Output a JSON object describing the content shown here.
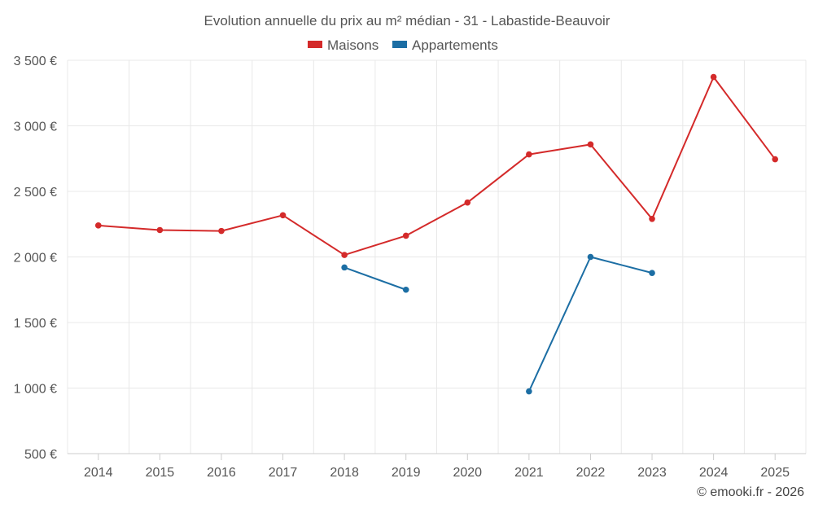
{
  "chart_data": {
    "type": "line",
    "title": "Evolution annuelle du prix au m² médian - 31 - Labastide-Beauvoir",
    "categories": [
      "2014",
      "2015",
      "2016",
      "2017",
      "2018",
      "2019",
      "2020",
      "2021",
      "2022",
      "2023",
      "2024",
      "2025"
    ],
    "y_tick_labels": [
      "500 €",
      "1 000 €",
      "1 500 €",
      "2 000 €",
      "2 500 €",
      "3 000 €",
      "3 500 €"
    ],
    "y_tick_values": [
      500,
      1000,
      1500,
      2000,
      2500,
      3000,
      3500
    ],
    "ylim": [
      500,
      3500
    ],
    "grid": true,
    "legend_position": "top-center",
    "series": [
      {
        "name": "Maisons",
        "color": "#d42a2a",
        "values": [
          2240,
          2205,
          2198,
          2318,
          2015,
          2162,
          2415,
          2782,
          2858,
          2290,
          3372,
          2745
        ]
      },
      {
        "name": "Appartements",
        "color": "#1c6ea4",
        "values": [
          null,
          null,
          null,
          null,
          1920,
          1750,
          null,
          975,
          2000,
          1878,
          null,
          null
        ]
      }
    ]
  },
  "credit": "© emooki.fr - 2026"
}
